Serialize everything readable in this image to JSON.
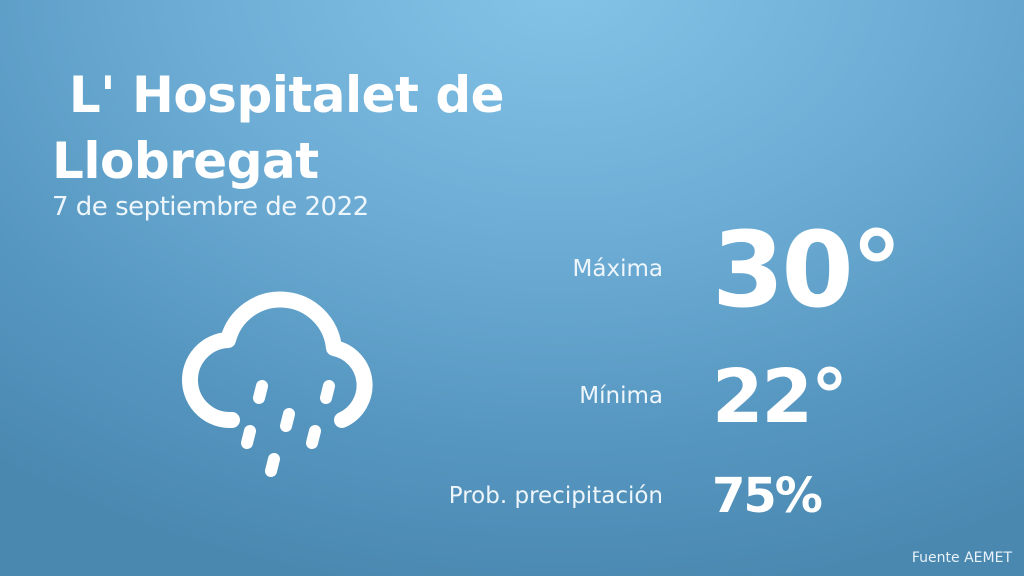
{
  "location": {
    "line1": " L' Hospitalet de",
    "line2": "Llobregat"
  },
  "date": "7 de septiembre de 2022",
  "weather_icon": "cloud-rain-icon",
  "stats": {
    "max": {
      "label": "Máxima",
      "value": "30°"
    },
    "min": {
      "label": "Mínima",
      "value": "22°"
    },
    "precip": {
      "label": "Prob. precipitación",
      "value": "75%"
    }
  },
  "source": "Fuente AEMET",
  "colors": {
    "background_top": "#84c4e8",
    "background_bottom": "#4a88b0",
    "text": "#ffffff"
  }
}
